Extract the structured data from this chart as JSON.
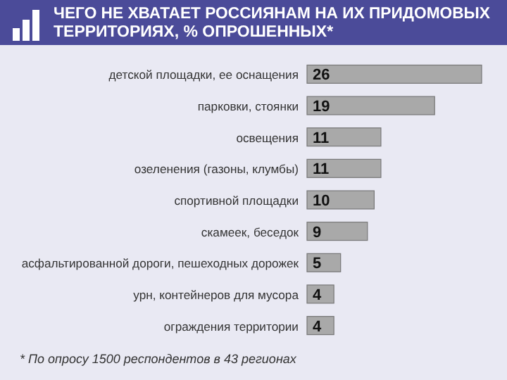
{
  "chart_data": {
    "type": "bar",
    "orientation": "horizontal",
    "title": "ЧЕГО НЕ ХВАТАЕТ РОССИЯНАМ НА ИХ ПРИДОМОВЫХ ТЕРРИТОРИЯХ, % ОПРОШЕННЫХ*",
    "categories": [
      "детской площадки, ее оснащения",
      "парковки, стоянки",
      "освещения",
      "озеленения (газоны, клумбы)",
      "спортивной площадки",
      "скамеек, беседок",
      "асфальтированной дороги, пешеходных дорожек",
      "урн, контейнеров для мусора",
      "ограждения территории"
    ],
    "values": [
      26,
      19,
      11,
      11,
      10,
      9,
      5,
      4,
      4
    ],
    "color": "#a9a9a9",
    "data_labels": true,
    "annotations": [
      "* По опросу 1500 респондентов в 43 регионах"
    ]
  }
}
